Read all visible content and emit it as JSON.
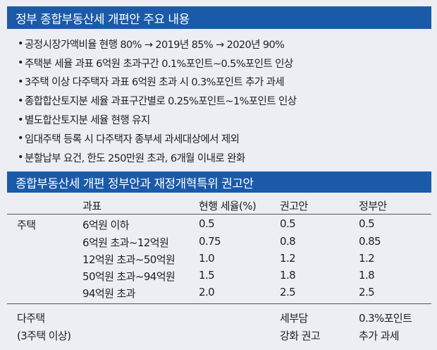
{
  "section1": {
    "title": "정부 종합부동산세 개편안 주요 내용",
    "bullets": [
      "공정시장가액비율 현행 80% → 2019년 85% → 2020년 90%",
      "주택분 세율 과표 6억원 초과구간 0.1%포인트~0.5%포인트 인상",
      "3주택 이상 다주택자 과표 6억원 초과 시 0.3%포인트 추가 과세",
      "종합합산토지분 세율 과표구간별로 0.25%포인트~1%포인트 인상",
      "별도합산토지분 세율 현행 유지",
      "임대주택 등록 시 다주택자 종부세 과세대상에서 제외",
      "분할납부 요건, 한도 250만원 초과, 6개월 이내로 완화"
    ]
  },
  "section2": {
    "title": "종합부동산세 개편 정부안과 재정개혁특위 권고안",
    "headers": [
      "과표",
      "현행 세율(%)",
      "권고안",
      "정부안"
    ],
    "group_label": "주택",
    "rows": [
      [
        "6억원 이하",
        "0.5",
        "0.5",
        "0.5"
      ],
      [
        "6억원 초과~12억원",
        "0.75",
        "0.8",
        "0.85"
      ],
      [
        "12억원 초과~50억원",
        "1.0",
        "1.2",
        "1.2"
      ],
      [
        "50억원 초과~94억원",
        "1.5",
        "1.8",
        "1.8"
      ],
      [
        "94억원 초과",
        "2.0",
        "2.5",
        "2.5"
      ]
    ],
    "footer": {
      "label_line1": "다주택",
      "label_line2": "(3주택 이상)",
      "recommend_line1": "세부담",
      "recommend_line2": "강화 권고",
      "gov_line1": "0.3%포인트",
      "gov_line2": "추가 과세"
    }
  }
}
